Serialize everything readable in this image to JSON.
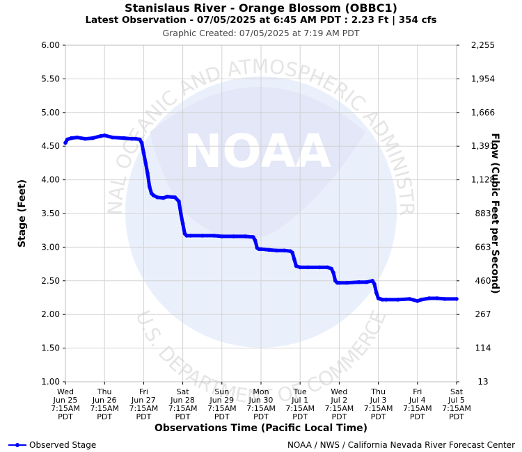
{
  "header": {
    "title": "Stanislaus River - Orange Blossom (OBBC1)",
    "subtitle": "Latest Observation - 07/05/2025 at 6:45 AM PDT : 2.23 Ft | 354 cfs",
    "created": "Graphic Created: 07/05/2025 at 7:19 AM PDT"
  },
  "watermark": {
    "ring_text_top": "NATIONAL OCEANIC AND ATMOSPHERIC ADMINISTRATION",
    "ring_text_bottom": "U.S. DEPARTMENT OF COMMERCE",
    "logo_text": "NOAA"
  },
  "legend": {
    "label": "Observed Stage"
  },
  "footer": {
    "credit": "NOAA / NWS / California Nevada River Forecast Center"
  },
  "colors": {
    "series": "#0000ff",
    "grid": "#d3d3d3",
    "watermark": "#e8eefa"
  },
  "chart_data": {
    "type": "line",
    "xlabel": "Observations Time (Pacific Local Time)",
    "ylabel": "Stage (Feet)",
    "y2label": "Flow (Cubic Feet per Second)",
    "ylim": [
      1.0,
      6.0
    ],
    "grid": true,
    "legend_placement": "bottom-left",
    "yticks": [
      "1.00",
      "1.50",
      "2.00",
      "2.50",
      "3.00",
      "3.50",
      "4.00",
      "4.50",
      "5.00",
      "5.50",
      "6.00"
    ],
    "y2ticks": [
      "13",
      "114",
      "267",
      "460",
      "663",
      "883",
      "1,128",
      "1,391",
      "1,666",
      "1,954",
      "2,255"
    ],
    "xticks": [
      [
        "Wed",
        "Jun 25",
        "7:15AM",
        "PDT"
      ],
      [
        "Thu",
        "Jun 26",
        "7:15AM",
        "PDT"
      ],
      [
        "Fri",
        "Jun 27",
        "7:15AM",
        "PDT"
      ],
      [
        "Sat",
        "Jun 28",
        "7:15AM",
        "PDT"
      ],
      [
        "Sun",
        "Jun 29",
        "7:15AM",
        "PDT"
      ],
      [
        "Mon",
        "Jun 30",
        "7:15AM",
        "PDT"
      ],
      [
        "Tue",
        "Jul 1",
        "7:15AM",
        "PDT"
      ],
      [
        "Wed",
        "Jul 2",
        "7:15AM",
        "PDT"
      ],
      [
        "Thu",
        "Jul 3",
        "7:15AM",
        "PDT"
      ],
      [
        "Fri",
        "Jul 4",
        "7:15AM",
        "PDT"
      ],
      [
        "Sat",
        "Jul 5",
        "7:15AM",
        "PDT"
      ]
    ],
    "series": [
      {
        "name": "Observed Stage",
        "x": [
          0,
          0.05,
          0.15,
          0.3,
          0.5,
          0.7,
          0.9,
          1.0,
          1.2,
          1.5,
          1.7,
          1.8,
          1.9,
          1.95,
          2.0,
          2.05,
          2.1,
          2.15,
          2.2,
          2.25,
          2.35,
          2.5,
          2.6,
          2.8,
          2.9,
          2.95,
          3.0,
          3.05,
          3.1,
          3.2,
          3.5,
          3.8,
          4.0,
          4.3,
          4.6,
          4.8,
          4.85,
          4.9,
          4.95,
          5.0,
          5.2,
          5.4,
          5.6,
          5.75,
          5.8,
          5.85,
          5.9,
          6.0,
          6.2,
          6.5,
          6.7,
          6.8,
          6.85,
          6.9,
          6.95,
          7.0,
          7.2,
          7.5,
          7.7,
          7.85,
          7.9,
          7.95,
          8.0,
          8.05,
          8.1,
          8.2,
          8.5,
          8.8,
          9.0,
          9.1,
          9.3,
          9.5,
          9.7,
          10.0
        ],
        "y": [
          4.55,
          4.6,
          4.62,
          4.63,
          4.61,
          4.62,
          4.65,
          4.66,
          4.63,
          4.62,
          4.61,
          4.61,
          4.6,
          4.55,
          4.4,
          4.25,
          4.1,
          3.9,
          3.8,
          3.77,
          3.74,
          3.73,
          3.75,
          3.74,
          3.68,
          3.5,
          3.35,
          3.2,
          3.17,
          3.17,
          3.17,
          3.17,
          3.16,
          3.16,
          3.16,
          3.15,
          3.1,
          2.99,
          2.97,
          2.97,
          2.96,
          2.95,
          2.95,
          2.94,
          2.92,
          2.82,
          2.72,
          2.7,
          2.7,
          2.7,
          2.7,
          2.68,
          2.62,
          2.5,
          2.47,
          2.47,
          2.47,
          2.48,
          2.48,
          2.5,
          2.45,
          2.32,
          2.24,
          2.23,
          2.22,
          2.22,
          2.22,
          2.23,
          2.2,
          2.22,
          2.24,
          2.24,
          2.23,
          2.23
        ]
      }
    ]
  }
}
